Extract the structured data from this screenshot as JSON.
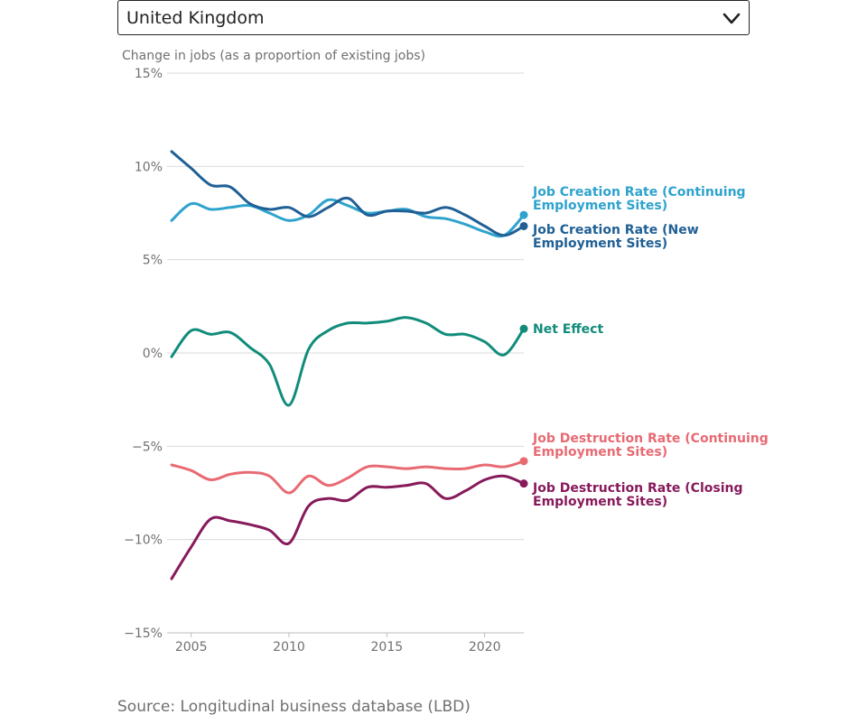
{
  "selector": {
    "selected": "United Kingdom",
    "icon": "chevron-down-icon"
  },
  "source": "Source: Longitudinal business database (LBD)",
  "chart_data": {
    "type": "line",
    "subtitle": "Change in jobs (as a proportion of existing jobs)",
    "x_ticks": [
      2005,
      2010,
      2015,
      2020
    ],
    "x_tick_labels": [
      "2005",
      "2010",
      "2015",
      "2020"
    ],
    "xlim": [
      2004,
      2022
    ],
    "y_ticks": [
      -15,
      -10,
      -5,
      0,
      5,
      10,
      15
    ],
    "y_tick_labels": [
      "−15%",
      "−10%",
      "−5%",
      "0%",
      "5%",
      "10%",
      "15%"
    ],
    "ylim": [
      -15,
      15
    ],
    "grid": "horizontal",
    "legend": "end-of-line labels, right",
    "x": [
      2004,
      2005,
      2006,
      2007,
      2008,
      2009,
      2010,
      2011,
      2012,
      2013,
      2014,
      2015,
      2016,
      2017,
      2018,
      2019,
      2020,
      2021,
      2022
    ],
    "series": [
      {
        "name": "Job Creation Rate (Continuing Employment Sites)",
        "color": "#2ea3cd",
        "values": [
          7.1,
          8.0,
          7.7,
          7.8,
          7.9,
          7.5,
          7.1,
          7.4,
          8.2,
          7.9,
          7.5,
          7.6,
          7.7,
          7.3,
          7.2,
          6.9,
          6.5,
          6.3,
          7.4
        ]
      },
      {
        "name": "Job Creation Rate (New Employment Sites)",
        "color": "#206095",
        "values": [
          10.8,
          9.9,
          9.0,
          8.9,
          8.0,
          7.7,
          7.8,
          7.3,
          7.8,
          8.3,
          7.4,
          7.6,
          7.6,
          7.5,
          7.8,
          7.4,
          6.8,
          6.3,
          6.8
        ]
      },
      {
        "name": "Net Effect",
        "color": "#118c7b",
        "values": [
          -0.2,
          1.2,
          1.0,
          1.1,
          0.3,
          -0.6,
          -2.8,
          0.2,
          1.2,
          1.6,
          1.6,
          1.7,
          1.9,
          1.6,
          1.0,
          1.0,
          0.6,
          -0.1,
          1.3
        ]
      },
      {
        "name": "Job Destruction Rate (Continuing Employment Sites)",
        "color": "#e86a73",
        "values": [
          -6.0,
          -6.3,
          -6.8,
          -6.5,
          -6.4,
          -6.6,
          -7.5,
          -6.6,
          -7.1,
          -6.7,
          -6.1,
          -6.1,
          -6.2,
          -6.1,
          -6.2,
          -6.2,
          -6.0,
          -6.1,
          -5.8
        ]
      },
      {
        "name": "Job Destruction Rate (Closing Employment Sites)",
        "color": "#871a5b",
        "values": [
          -12.1,
          -10.4,
          -8.9,
          -9.0,
          -9.2,
          -9.5,
          -10.2,
          -8.2,
          -7.8,
          -7.9,
          -7.2,
          -7.2,
          -7.1,
          -7.0,
          -7.8,
          -7.4,
          -6.8,
          -6.6,
          -7.0
        ]
      }
    ],
    "end_labels": [
      {
        "series": 0,
        "lines": [
          "Job Creation Rate (Continuing",
          "Employment Sites)"
        ]
      },
      {
        "series": 1,
        "lines": [
          "Job Creation Rate (New",
          "Employment Sites)"
        ]
      },
      {
        "series": 2,
        "lines": [
          "Net Effect"
        ]
      },
      {
        "series": 3,
        "lines": [
          "Job Destruction Rate (Continuing",
          "Employment Sites)"
        ]
      },
      {
        "series": 4,
        "lines": [
          "Job Destruction Rate (Closing",
          "Employment Sites)"
        ]
      }
    ]
  }
}
